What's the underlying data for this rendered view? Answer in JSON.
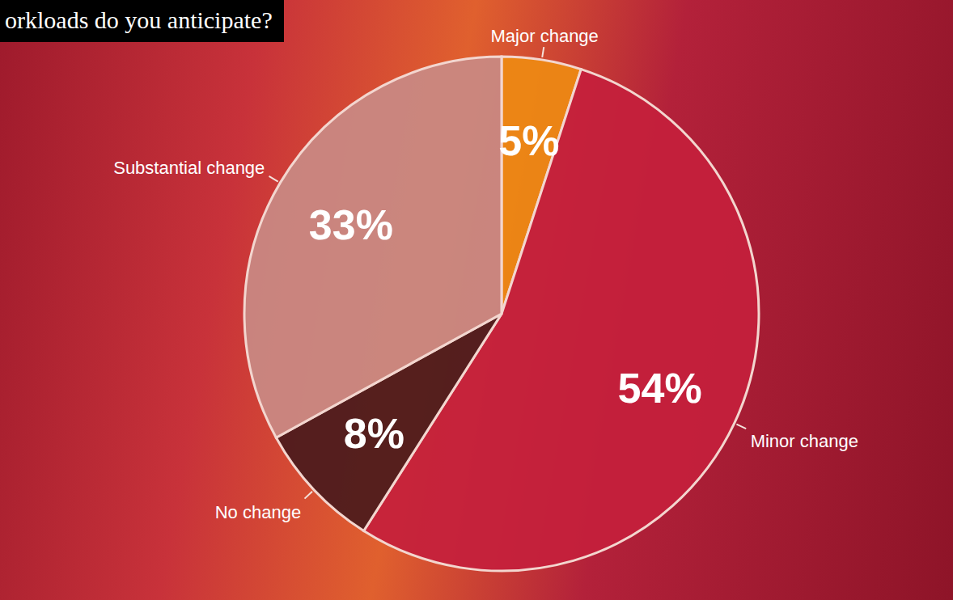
{
  "chart_data": {
    "type": "pie",
    "title": "orkloads do you anticipate?",
    "categories": [
      "Major change",
      "Minor change",
      "No change",
      "Substantial change"
    ],
    "values": [
      5,
      54,
      8,
      33
    ],
    "value_labels": [
      "5%",
      "54%",
      "8%",
      "33%"
    ],
    "colors": [
      "#ee8a12",
      "#c41f3c",
      "#4a1a1c",
      "#c98a84"
    ],
    "data_labels": true
  }
}
